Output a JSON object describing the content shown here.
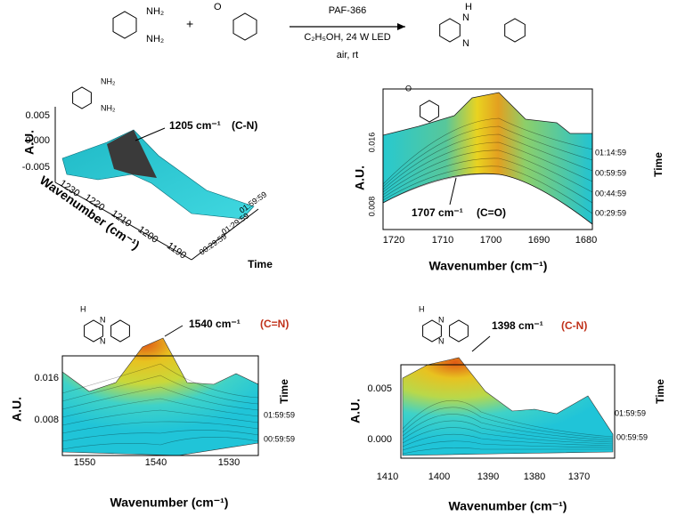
{
  "scheme": {
    "reactant_labels": [
      "NH₂",
      "NH₂"
    ],
    "plus": "+",
    "aldehyde_label": "O",
    "catalyst": "PAF-366",
    "conditions": "C₂H₅OH, 24 W  LED",
    "conditions2": "air, rt",
    "product_labels": [
      "H",
      "N",
      "N"
    ]
  },
  "panels": [
    {
      "molecule_labels": [
        "NH₂",
        "NH₂"
      ],
      "annotation": "1205 cm⁻¹",
      "assignment": "(C-N)",
      "y_axis_label": "A.U.",
      "y_ticks": [
        "0.005",
        "0.000",
        "-0.005"
      ],
      "x_axis_label": "Wavenumber (cm⁻¹)",
      "x_ticks": [
        "1230",
        "1220",
        "1210",
        "1200",
        "1190"
      ],
      "time_ticks": [
        "00:29:59",
        "01:29:59",
        "01:59:59"
      ],
      "time_label": "Time"
    },
    {
      "molecule_labels": [
        "O"
      ],
      "annotation": "1707 cm⁻¹",
      "assignment": "(C=O)",
      "y_axis_label": "A.U.",
      "y_ticks": [
        "0.016",
        "0.008"
      ],
      "x_axis_label": "Wavenumber (cm⁻¹)",
      "x_ticks": [
        "1720",
        "1710",
        "1700",
        "1690",
        "1680"
      ],
      "time_ticks": [
        "01:14:59",
        "00:59:59",
        "00:44:59",
        "00:29:59"
      ],
      "time_label": "Time"
    },
    {
      "molecule_labels": [
        "H",
        "N",
        "N"
      ],
      "annotation": "1540 cm⁻¹",
      "assignment": "(C=N)",
      "y_axis_label": "A.U.",
      "y_ticks": [
        "0.016",
        "0.008"
      ],
      "x_axis_label": "Wavenumber (cm⁻¹)",
      "x_ticks": [
        "1550",
        "1540",
        "1530"
      ],
      "time_ticks": [
        "01:59:59",
        "00:59:59"
      ],
      "time_label": "Time"
    },
    {
      "molecule_labels": [
        "H",
        "N",
        "N"
      ],
      "annotation": "1398 cm⁻¹",
      "assignment": "(C-N)",
      "y_axis_label": "A.U.",
      "y_ticks": [
        "0.005",
        "0.000"
      ],
      "x_axis_label": "Wavenumber (cm⁻¹)",
      "x_ticks": [
        "1410",
        "1400",
        "1390",
        "1380",
        "1370"
      ],
      "time_ticks": [
        "01:59:59",
        "00:59:59"
      ],
      "time_label": "Time"
    }
  ]
}
